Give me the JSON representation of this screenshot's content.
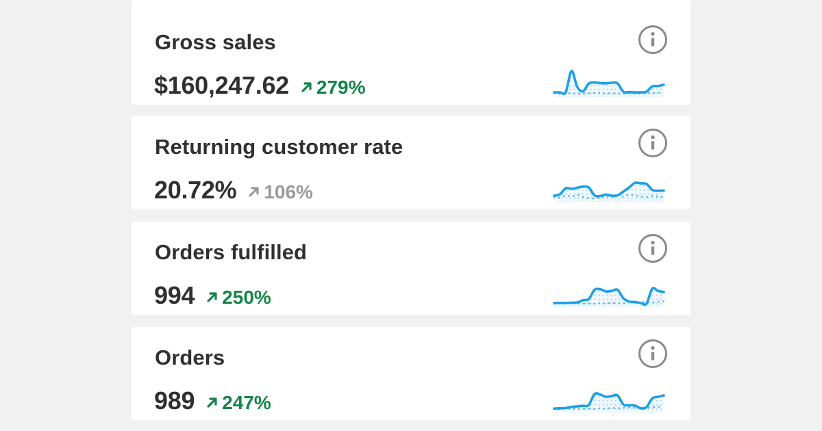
{
  "page": {
    "background_color": "#f1f1f1",
    "card_background_color": "#ffffff"
  },
  "colors": {
    "text": "#303030",
    "positive_green": "#13844a",
    "neutral_gray": "#9a9a9a",
    "info_icon_gray": "#8a8a8a",
    "sparkline_blue": "#1e9fe6",
    "sparkline_previous_blue": "#5ab7ec",
    "sparkline_area_dot": "#a9d7f2",
    "sparkline_area_tint": "#f0f8fd"
  },
  "cards": [
    {
      "title": "Gross sales",
      "value": "$160,247.62",
      "delta": "279%",
      "delta_direction": "up",
      "delta_tone": "positive",
      "sparkline": {
        "current": [
          0.1,
          0.1,
          0.1,
          0.88,
          0.3,
          0.14,
          0.42,
          0.46,
          0.44,
          0.43,
          0.45,
          0.43,
          0.12,
          0.11,
          0.1,
          0.1,
          0.12,
          0.32,
          0.33,
          0.38
        ],
        "previous": [
          0.06,
          0.05,
          0.07,
          0.06,
          0.05,
          0.06,
          0.07,
          0.08,
          0.07,
          0.06,
          0.07,
          0.06,
          0.05,
          0.06,
          0.05,
          0.06,
          0.08,
          0.07,
          0.09,
          0.12
        ]
      }
    },
    {
      "title": "Returning customer rate",
      "value": "20.72%",
      "delta": "106%",
      "delta_direction": "up",
      "delta_tone": "neutral",
      "sparkline": {
        "current": [
          0.15,
          0.2,
          0.42,
          0.4,
          0.44,
          0.48,
          0.45,
          0.16,
          0.14,
          0.19,
          0.15,
          0.16,
          0.3,
          0.45,
          0.62,
          0.6,
          0.58,
          0.36,
          0.33,
          0.34
        ],
        "previous": [
          0.1,
          0.08,
          0.15,
          0.12,
          0.18,
          0.1,
          0.06,
          0.05,
          0.08,
          0.12,
          0.1,
          0.15,
          0.12,
          0.18,
          0.15,
          0.12,
          0.1,
          0.14,
          0.12,
          0.1
        ]
      }
    },
    {
      "title": "Orders fulfilled",
      "value": "994",
      "delta": "250%",
      "delta_direction": "up",
      "delta_tone": "positive",
      "sparkline": {
        "current": [
          0.08,
          0.08,
          0.08,
          0.09,
          0.1,
          0.18,
          0.22,
          0.56,
          0.58,
          0.5,
          0.52,
          0.56,
          0.25,
          0.13,
          0.11,
          0.08,
          0.05,
          0.6,
          0.52,
          0.48
        ],
        "previous": [
          0.05,
          0.06,
          0.05,
          0.07,
          0.06,
          0.05,
          0.06,
          0.05,
          0.07,
          0.06,
          0.08,
          0.07,
          0.06,
          0.14,
          0.12,
          0.1,
          0.12,
          0.1,
          0.12,
          0.14
        ]
      }
    },
    {
      "title": "Orders",
      "value": "989",
      "delta": "247%",
      "delta_direction": "up",
      "delta_tone": "positive",
      "sparkline": {
        "current": [
          0.07,
          0.08,
          0.09,
          0.13,
          0.15,
          0.17,
          0.2,
          0.6,
          0.58,
          0.5,
          0.53,
          0.55,
          0.22,
          0.19,
          0.18,
          0.08,
          0.12,
          0.44,
          0.5,
          0.55
        ],
        "previous": [
          0.06,
          0.05,
          0.07,
          0.06,
          0.05,
          0.06,
          0.07,
          0.06,
          0.08,
          0.07,
          0.09,
          0.08,
          0.1,
          0.12,
          0.1,
          0.12,
          0.1,
          0.12,
          0.14,
          0.12
        ]
      }
    }
  ]
}
